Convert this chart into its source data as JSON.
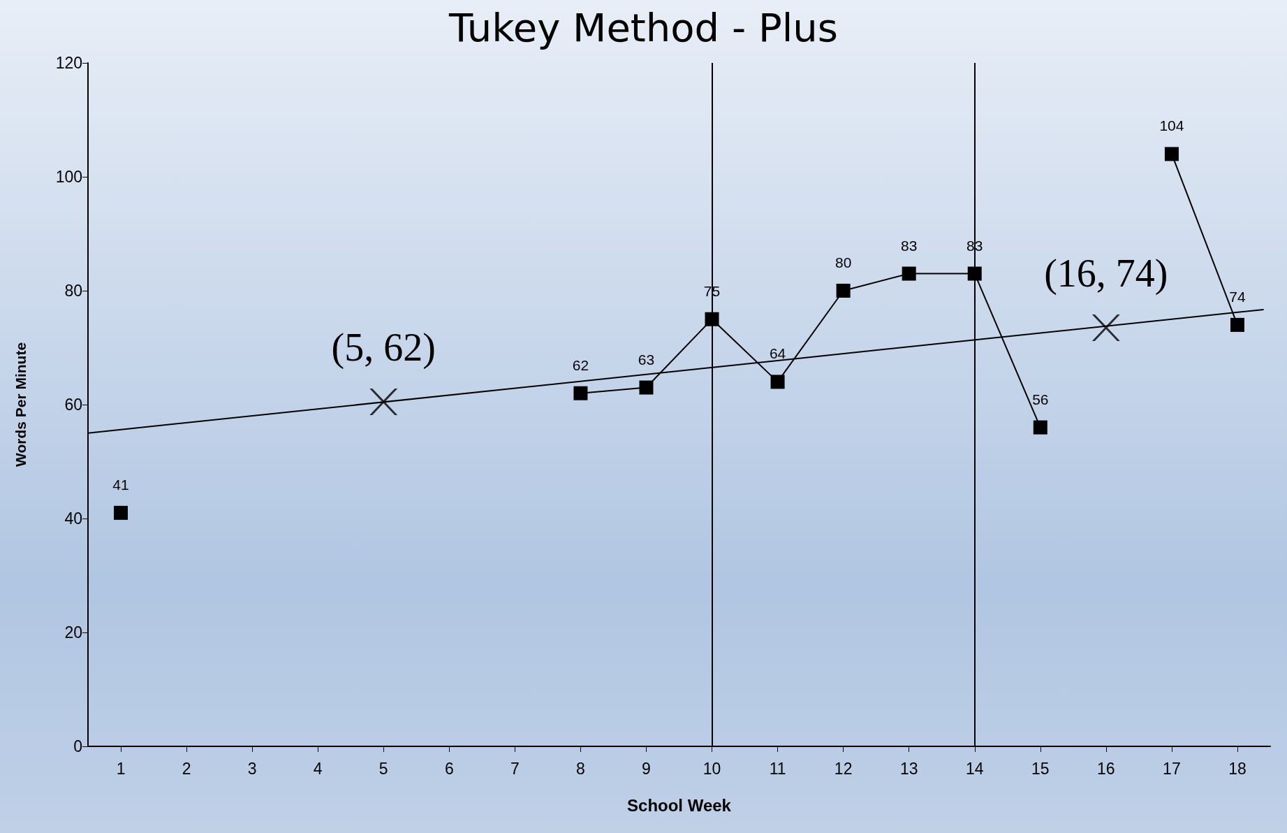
{
  "chart_data": {
    "type": "line",
    "title": "Tukey Method - Plus",
    "xlabel": "School Week",
    "ylabel": "Words Per Minute",
    "x": [
      1,
      2,
      3,
      4,
      5,
      6,
      7,
      8,
      9,
      10,
      11,
      12,
      13,
      14,
      15,
      16,
      17,
      18
    ],
    "xlim": [
      0.5,
      18.5
    ],
    "xticks": [
      1,
      2,
      3,
      4,
      5,
      6,
      7,
      8,
      9,
      10,
      11,
      12,
      13,
      14,
      15,
      16,
      17,
      18
    ],
    "ylim": [
      0,
      120
    ],
    "yticks": [
      0,
      20,
      40,
      60,
      80,
      100,
      120
    ],
    "grid": false,
    "series": [
      {
        "color": "#000000",
        "marker": "square",
        "data_labels": true,
        "values": [
          41,
          null,
          null,
          null,
          null,
          null,
          null,
          62,
          63,
          75,
          64,
          80,
          83,
          83,
          56,
          null,
          104,
          74
        ]
      },
      {
        "type": "line",
        "color": "#000000",
        "marker": "none",
        "x": [
          0.5,
          18.4
        ],
        "values": [
          55,
          76.7
        ]
      },
      {
        "type": "scatter",
        "color": "#000000",
        "marker": "cross",
        "x": [
          5,
          16
        ],
        "values": [
          60.5,
          73.5
        ]
      }
    ],
    "ref_lines": [
      {
        "axis": "x",
        "value": 10,
        "color": "#000000"
      },
      {
        "axis": "x",
        "value": 14,
        "color": "#000000"
      }
    ],
    "annotations": [
      "(5, 62)",
      "(16, 74)"
    ]
  }
}
